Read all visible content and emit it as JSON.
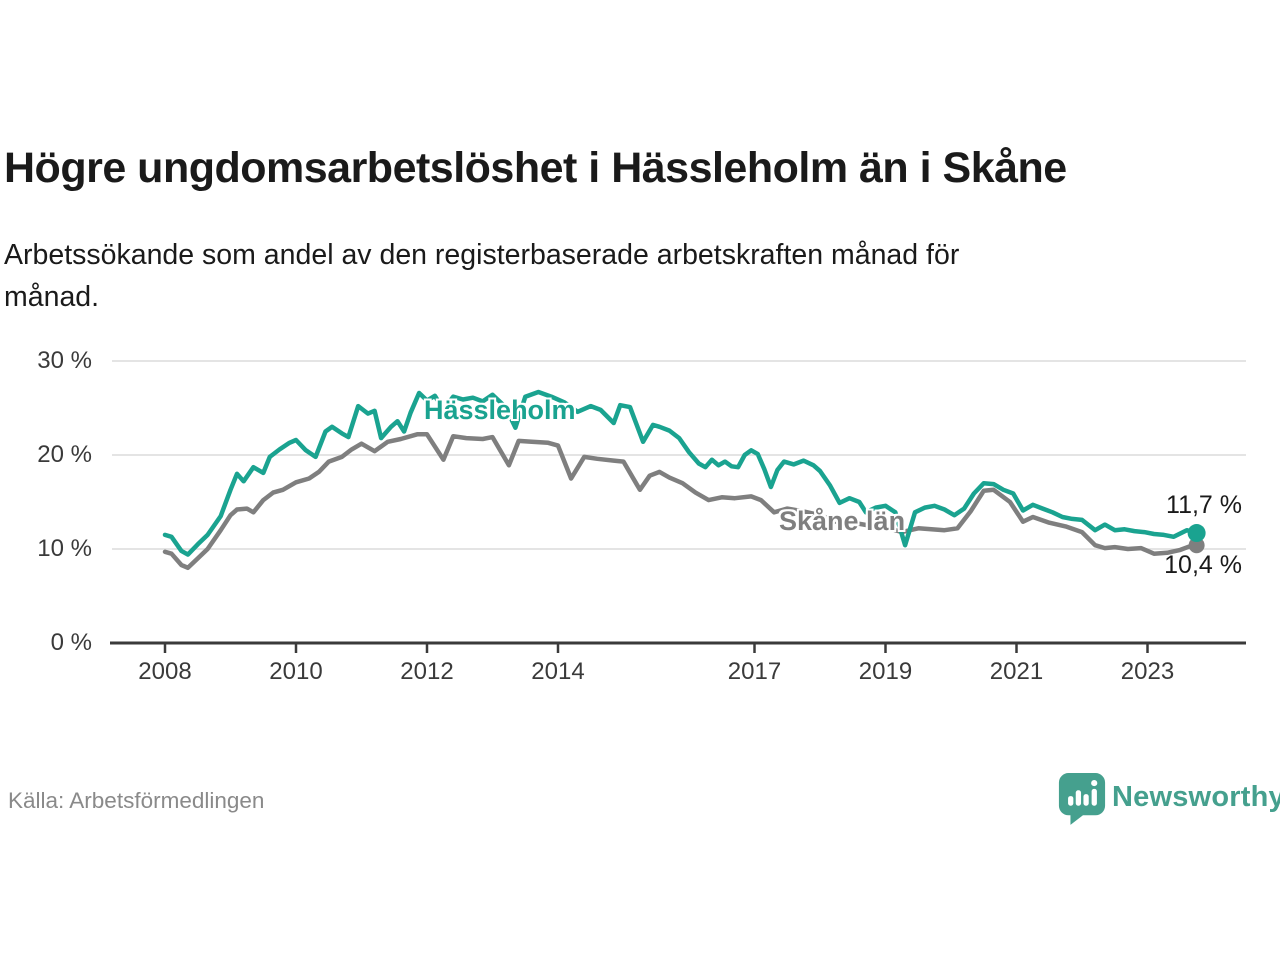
{
  "header": {
    "title": "Högre ungdomsarbetslöshet i Hässleholm än i Skåne",
    "subtitle_line1": "Arbetssökande som andel av den registerbaserade arbetskraften månad för",
    "subtitle_line2": "månad."
  },
  "chart_data": {
    "type": "line",
    "title": "Högre ungdomsarbetslöshet i Hässleholm än i Skåne",
    "subtitle": "Arbetssökande som andel av den registerbaserade arbetskraften månad för månad.",
    "unit": "%",
    "ylim": [
      0,
      30
    ],
    "yticks": [
      0,
      10,
      20,
      30
    ],
    "ytick_suffix": " %",
    "xticks": [
      2008,
      2010,
      2012,
      2014,
      2017,
      2019,
      2021,
      2023
    ],
    "x_range": [
      2008.0,
      2023.75
    ],
    "grid": "horizontal-only",
    "legend_position": "inline-labels",
    "series": [
      {
        "name": "Skåne län",
        "color": "#7F7F7F",
        "end_label": "10,4 %",
        "end_value": 10.4,
        "points": [
          [
            2008.0,
            9.7
          ],
          [
            2008.1,
            9.5
          ],
          [
            2008.25,
            8.3
          ],
          [
            2008.35,
            8.0
          ],
          [
            2008.5,
            9.0
          ],
          [
            2008.65,
            10.0
          ],
          [
            2008.85,
            12.0
          ],
          [
            2009.0,
            13.6
          ],
          [
            2009.1,
            14.2
          ],
          [
            2009.25,
            14.3
          ],
          [
            2009.35,
            13.9
          ],
          [
            2009.5,
            15.2
          ],
          [
            2009.65,
            16.0
          ],
          [
            2009.8,
            16.3
          ],
          [
            2010.0,
            17.1
          ],
          [
            2010.2,
            17.5
          ],
          [
            2010.35,
            18.2
          ],
          [
            2010.5,
            19.3
          ],
          [
            2010.7,
            19.8
          ],
          [
            2010.85,
            20.6
          ],
          [
            2011.0,
            21.2
          ],
          [
            2011.2,
            20.4
          ],
          [
            2011.4,
            21.4
          ],
          [
            2011.6,
            21.7
          ],
          [
            2011.85,
            22.2
          ],
          [
            2012.0,
            22.2
          ],
          [
            2012.25,
            19.5
          ],
          [
            2012.4,
            22.0
          ],
          [
            2012.6,
            21.8
          ],
          [
            2012.85,
            21.7
          ],
          [
            2013.0,
            21.9
          ],
          [
            2013.25,
            18.9
          ],
          [
            2013.4,
            21.5
          ],
          [
            2013.6,
            21.4
          ],
          [
            2013.85,
            21.3
          ],
          [
            2014.0,
            21.0
          ],
          [
            2014.2,
            17.5
          ],
          [
            2014.4,
            19.8
          ],
          [
            2014.6,
            19.6
          ],
          [
            2014.85,
            19.4
          ],
          [
            2015.0,
            19.3
          ],
          [
            2015.25,
            16.3
          ],
          [
            2015.4,
            17.8
          ],
          [
            2015.55,
            18.2
          ],
          [
            2015.7,
            17.6
          ],
          [
            2015.9,
            17.0
          ],
          [
            2016.1,
            16.0
          ],
          [
            2016.3,
            15.2
          ],
          [
            2016.5,
            15.5
          ],
          [
            2016.7,
            15.4
          ],
          [
            2016.95,
            15.6
          ],
          [
            2017.1,
            15.2
          ],
          [
            2017.3,
            13.9
          ],
          [
            2017.5,
            14.3
          ],
          [
            2017.75,
            14.0
          ],
          [
            2018.0,
            13.6
          ],
          [
            2018.25,
            12.9
          ],
          [
            2018.5,
            12.8
          ],
          [
            2018.75,
            12.5
          ],
          [
            2019.0,
            12.3
          ],
          [
            2019.25,
            11.8
          ],
          [
            2019.5,
            12.2
          ],
          [
            2019.7,
            12.1
          ],
          [
            2019.9,
            12.0
          ],
          [
            2020.1,
            12.2
          ],
          [
            2020.3,
            14.0
          ],
          [
            2020.5,
            16.2
          ],
          [
            2020.65,
            16.3
          ],
          [
            2020.9,
            15.0
          ],
          [
            2021.1,
            12.9
          ],
          [
            2021.25,
            13.4
          ],
          [
            2021.5,
            12.8
          ],
          [
            2021.75,
            12.4
          ],
          [
            2022.0,
            11.8
          ],
          [
            2022.2,
            10.4
          ],
          [
            2022.35,
            10.1
          ],
          [
            2022.5,
            10.2
          ],
          [
            2022.7,
            10.0
          ],
          [
            2022.9,
            10.1
          ],
          [
            2023.1,
            9.5
          ],
          [
            2023.3,
            9.6
          ],
          [
            2023.5,
            9.9
          ],
          [
            2023.65,
            10.3
          ],
          [
            2023.75,
            10.4
          ]
        ]
      },
      {
        "name": "Hässleholm",
        "color": "#1AA390",
        "end_label": "11,7 %",
        "end_value": 11.7,
        "points": [
          [
            2008.0,
            11.5
          ],
          [
            2008.1,
            11.3
          ],
          [
            2008.25,
            9.8
          ],
          [
            2008.35,
            9.4
          ],
          [
            2008.5,
            10.5
          ],
          [
            2008.65,
            11.5
          ],
          [
            2008.85,
            13.5
          ],
          [
            2009.0,
            16.3
          ],
          [
            2009.1,
            18.0
          ],
          [
            2009.2,
            17.2
          ],
          [
            2009.35,
            18.7
          ],
          [
            2009.5,
            18.1
          ],
          [
            2009.6,
            19.8
          ],
          [
            2009.75,
            20.6
          ],
          [
            2009.9,
            21.3
          ],
          [
            2010.0,
            21.6
          ],
          [
            2010.15,
            20.5
          ],
          [
            2010.3,
            19.8
          ],
          [
            2010.45,
            22.5
          ],
          [
            2010.55,
            23.0
          ],
          [
            2010.7,
            22.3
          ],
          [
            2010.8,
            21.9
          ],
          [
            2010.95,
            25.2
          ],
          [
            2011.1,
            24.4
          ],
          [
            2011.2,
            24.7
          ],
          [
            2011.3,
            21.8
          ],
          [
            2011.45,
            23.0
          ],
          [
            2011.55,
            23.6
          ],
          [
            2011.65,
            22.5
          ],
          [
            2011.75,
            24.5
          ],
          [
            2011.88,
            26.6
          ],
          [
            2012.0,
            25.8
          ],
          [
            2012.12,
            26.3
          ],
          [
            2012.25,
            24.8
          ],
          [
            2012.4,
            26.2
          ],
          [
            2012.55,
            25.9
          ],
          [
            2012.7,
            26.1
          ],
          [
            2012.85,
            25.7
          ],
          [
            2013.0,
            26.4
          ],
          [
            2013.2,
            25.1
          ],
          [
            2013.35,
            22.9
          ],
          [
            2013.5,
            26.2
          ],
          [
            2013.7,
            26.7
          ],
          [
            2013.9,
            26.2
          ],
          [
            2014.1,
            25.6
          ],
          [
            2014.3,
            24.6
          ],
          [
            2014.5,
            25.2
          ],
          [
            2014.65,
            24.8
          ],
          [
            2014.85,
            23.4
          ],
          [
            2014.95,
            25.3
          ],
          [
            2015.1,
            25.1
          ],
          [
            2015.3,
            21.4
          ],
          [
            2015.45,
            23.2
          ],
          [
            2015.55,
            23.0
          ],
          [
            2015.7,
            22.6
          ],
          [
            2015.85,
            21.8
          ],
          [
            2016.0,
            20.3
          ],
          [
            2016.15,
            19.1
          ],
          [
            2016.25,
            18.7
          ],
          [
            2016.35,
            19.5
          ],
          [
            2016.45,
            18.9
          ],
          [
            2016.55,
            19.3
          ],
          [
            2016.65,
            18.8
          ],
          [
            2016.75,
            18.7
          ],
          [
            2016.85,
            20.0
          ],
          [
            2016.95,
            20.5
          ],
          [
            2017.05,
            20.1
          ],
          [
            2017.15,
            18.5
          ],
          [
            2017.25,
            16.6
          ],
          [
            2017.35,
            18.4
          ],
          [
            2017.45,
            19.3
          ],
          [
            2017.6,
            19.0
          ],
          [
            2017.75,
            19.4
          ],
          [
            2017.9,
            18.9
          ],
          [
            2018.0,
            18.3
          ],
          [
            2018.15,
            16.8
          ],
          [
            2018.3,
            14.9
          ],
          [
            2018.45,
            15.4
          ],
          [
            2018.6,
            15.0
          ],
          [
            2018.7,
            13.9
          ],
          [
            2018.85,
            14.4
          ],
          [
            2019.0,
            14.6
          ],
          [
            2019.15,
            13.9
          ],
          [
            2019.3,
            10.4
          ],
          [
            2019.45,
            13.9
          ],
          [
            2019.6,
            14.4
          ],
          [
            2019.75,
            14.6
          ],
          [
            2019.9,
            14.2
          ],
          [
            2020.05,
            13.6
          ],
          [
            2020.2,
            14.3
          ],
          [
            2020.35,
            15.9
          ],
          [
            2020.5,
            17.0
          ],
          [
            2020.65,
            16.9
          ],
          [
            2020.8,
            16.3
          ],
          [
            2020.95,
            15.9
          ],
          [
            2021.1,
            14.1
          ],
          [
            2021.25,
            14.7
          ],
          [
            2021.4,
            14.3
          ],
          [
            2021.55,
            13.9
          ],
          [
            2021.7,
            13.4
          ],
          [
            2021.85,
            13.2
          ],
          [
            2022.0,
            13.1
          ],
          [
            2022.2,
            12.0
          ],
          [
            2022.35,
            12.6
          ],
          [
            2022.5,
            12.0
          ],
          [
            2022.65,
            12.1
          ],
          [
            2022.8,
            11.9
          ],
          [
            2022.95,
            11.8
          ],
          [
            2023.1,
            11.6
          ],
          [
            2023.25,
            11.5
          ],
          [
            2023.4,
            11.3
          ],
          [
            2023.6,
            12.0
          ],
          [
            2023.75,
            11.7
          ]
        ]
      }
    ]
  },
  "colors": {
    "hassleholm": "#1AA390",
    "skane": "#7F7F7F",
    "grid": "#DCDCDC",
    "axis": "#3a3a3a",
    "title": "#1a1a1a",
    "brand_teal": "#45A08E"
  },
  "footer": {
    "source": "Källa: Arbetsförmedlingen",
    "brand": "Newsworthy"
  }
}
